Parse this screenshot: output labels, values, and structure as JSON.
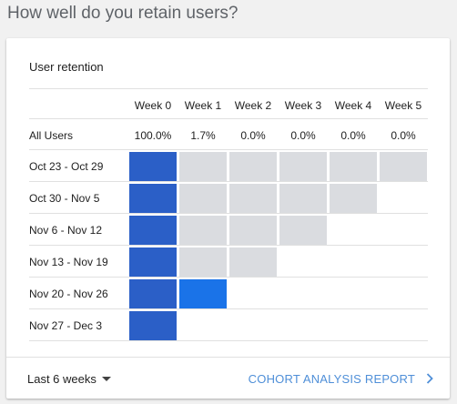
{
  "header": {
    "title": "How well do you retain users?"
  },
  "card": {
    "title": "User retention",
    "weeks": [
      "Week 0",
      "Week 1",
      "Week 2",
      "Week 3",
      "Week 4",
      "Week 5"
    ],
    "all_users": {
      "label": "All Users",
      "values": [
        "100.0%",
        "1.7%",
        "0.0%",
        "0.0%",
        "0.0%",
        "0.0%"
      ]
    },
    "cohorts": [
      {
        "label": "Oct 23 - Oct 29",
        "cells": [
          100,
          0,
          0,
          0,
          0,
          0
        ]
      },
      {
        "label": "Oct 30 - Nov 5",
        "cells": [
          100,
          0,
          0,
          0,
          0
        ]
      },
      {
        "label": "Nov 6 - Nov 12",
        "cells": [
          100,
          0,
          0,
          0
        ]
      },
      {
        "label": "Nov 13 - Nov 19",
        "cells": [
          100,
          0,
          0
        ]
      },
      {
        "label": "Nov 20 - Nov 26",
        "cells": [
          100,
          40
        ]
      },
      {
        "label": "Nov 27 - Dec 3",
        "cells": [
          100
        ]
      }
    ]
  },
  "footer": {
    "range_label": "Last 6 weeks",
    "link_label": "COHORT ANALYSIS REPORT"
  },
  "colors": {
    "full": "#2b5fc7",
    "partial": "#1a73e8",
    "empty": "#dadce0",
    "link": "#4f8fd8"
  },
  "icons": {
    "range_caret": "caret-down-icon",
    "link_chevron": "chevron-right-icon"
  }
}
